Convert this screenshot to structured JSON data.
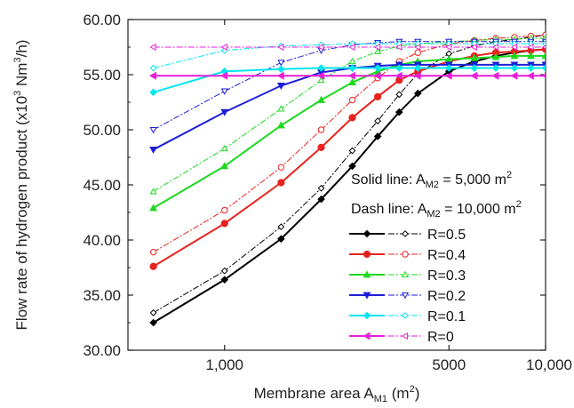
{
  "chart_data": {
    "type": "line",
    "x_scale": "log",
    "xlim": [
      500,
      10000
    ],
    "ylim": [
      30,
      60
    ],
    "grid": false,
    "legend_position": "right-middle",
    "xlabel": {
      "main": "Membrane area A",
      "sub": "M1",
      "tail": " (m",
      "sup": "2",
      "end": ")"
    },
    "ylabel": {
      "main": "Flow rate of hydrogen product (x10",
      "sup1": "3",
      "mid": " Nm",
      "sup2": "3",
      "end": "/h)"
    },
    "x_ticks": [
      {
        "value": 1000,
        "label": "1,000"
      },
      {
        "value": 5000,
        "label": "5000"
      },
      {
        "value": 10000,
        "label": "10,000"
      }
    ],
    "y_ticks": [
      {
        "value": 30,
        "label": "30.00"
      },
      {
        "value": 35,
        "label": "35.00"
      },
      {
        "value": 40,
        "label": "40.00"
      },
      {
        "value": 45,
        "label": "45.00"
      },
      {
        "value": 50,
        "label": "50.00"
      },
      {
        "value": 55,
        "label": "55.00"
      },
      {
        "value": 60,
        "label": "60.00"
      }
    ],
    "annotations": {
      "solid": {
        "main": "Solid line: A",
        "sub": "M2",
        "tail": " = 5,000 m",
        "sup": "2"
      },
      "dash": {
        "main": "Dash line: A",
        "sub": "M2",
        "tail": " = 10,000 m",
        "sup": "2"
      }
    },
    "x": [
      600,
      1000,
      1500,
      2000,
      2500,
      3000,
      3500,
      4000,
      5000,
      6000,
      7000,
      8000,
      9000,
      10000
    ],
    "series": [
      {
        "name": "R=0.5",
        "color": "#000000",
        "marker": "diamond",
        "solid": [
          32.5,
          36.4,
          40.1,
          43.7,
          46.7,
          49.4,
          51.6,
          53.3,
          55.3,
          56.2,
          56.7,
          57.0,
          57.2,
          57.3
        ],
        "dash": [
          33.4,
          37.2,
          41.2,
          44.7,
          48.1,
          50.8,
          53.2,
          55.1,
          56.9,
          57.6,
          58.0,
          58.2,
          58.4,
          58.6
        ]
      },
      {
        "name": "R=0.4",
        "color": "#e8231e",
        "marker": "circle",
        "solid": [
          37.6,
          41.5,
          45.2,
          48.4,
          51.1,
          53.0,
          54.5,
          55.3,
          56.2,
          56.7,
          57.0,
          57.1,
          57.2,
          57.3
        ],
        "dash": [
          38.9,
          42.7,
          46.6,
          50.0,
          52.7,
          54.7,
          56.2,
          57.0,
          57.8,
          58.1,
          58.3,
          58.4,
          58.5,
          58.6
        ]
      },
      {
        "name": "R=0.3",
        "color": "#1ed81e",
        "marker": "triangle-up",
        "solid": [
          42.9,
          46.7,
          50.4,
          52.7,
          54.3,
          55.3,
          55.9,
          56.2,
          56.4,
          56.5,
          56.6,
          56.7,
          56.7,
          56.7
        ],
        "dash": [
          44.4,
          48.3,
          51.9,
          54.5,
          56.2,
          57.1,
          57.6,
          57.8,
          58.0,
          58.1,
          58.2,
          58.2,
          58.3,
          58.3
        ]
      },
      {
        "name": "R=0.2",
        "color": "#1e1ed8",
        "marker": "triangle-down",
        "solid": [
          48.2,
          51.6,
          54.0,
          55.2,
          55.6,
          55.8,
          55.9,
          55.9,
          55.9,
          55.9,
          55.9,
          55.9,
          55.9,
          55.9
        ],
        "dash": [
          50.0,
          53.5,
          56.1,
          57.2,
          57.7,
          57.9,
          58.0,
          58.0,
          58.0,
          58.0,
          58.0,
          58.0,
          58.0,
          58.0
        ]
      },
      {
        "name": "R=0.1",
        "color": "#00e5f0",
        "marker": "diamond",
        "solid": [
          53.4,
          55.3,
          55.5,
          55.6,
          55.6,
          55.6,
          55.6,
          55.6,
          55.6,
          55.6,
          55.6,
          55.6,
          55.6,
          55.6
        ],
        "dash": [
          55.6,
          57.2,
          57.6,
          57.7,
          57.8,
          57.8,
          57.8,
          57.8,
          57.8,
          57.8,
          57.8,
          57.8,
          57.8,
          57.8
        ]
      },
      {
        "name": "R=0",
        "color": "#e81ed8",
        "marker": "triangle-left",
        "solid": [
          54.9,
          54.9,
          54.9,
          54.9,
          54.9,
          54.9,
          54.9,
          54.9,
          54.9,
          54.9,
          54.9,
          54.9,
          54.9,
          54.9
        ],
        "dash": [
          57.5,
          57.5,
          57.5,
          57.5,
          57.5,
          57.5,
          57.5,
          57.5,
          57.5,
          57.5,
          57.5,
          57.5,
          57.5,
          57.5
        ]
      }
    ]
  }
}
